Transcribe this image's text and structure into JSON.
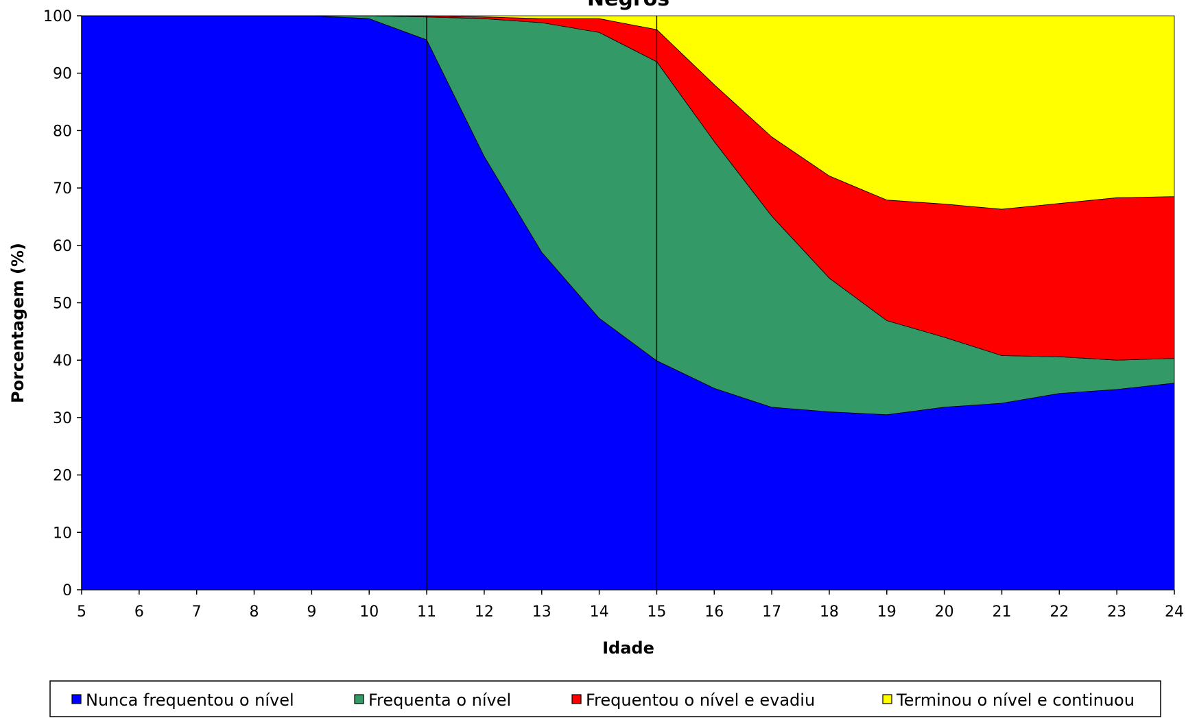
{
  "chart_data": {
    "type": "area",
    "stacked": true,
    "normalized_percent": true,
    "title": "Negros",
    "xlabel": "Idade",
    "ylabel": "Porcentagem (%)",
    "x": [
      5,
      6,
      7,
      8,
      9,
      10,
      11,
      12,
      13,
      14,
      15,
      16,
      17,
      18,
      19,
      20,
      21,
      22,
      23,
      24
    ],
    "xlim": [
      5,
      24
    ],
    "ylim": [
      0,
      100
    ],
    "yticks": [
      0,
      10,
      20,
      30,
      40,
      50,
      60,
      70,
      80,
      90,
      100
    ],
    "grid": false,
    "legend_position": "bottom",
    "vertical_lines_at_x": [
      11,
      15
    ],
    "series": [
      {
        "name": "Nunca frequentou o nível",
        "color": "#0000FF",
        "values": [
          100,
          100,
          100,
          100,
          100,
          99.5,
          95.8,
          75.5,
          58.8,
          47.3,
          39.9,
          35.1,
          31.8,
          31.0,
          30.5,
          31.8,
          32.5,
          34.2,
          34.9,
          36.0
        ]
      },
      {
        "name": "Frequenta o nível",
        "color": "#339966",
        "values": [
          0,
          0,
          0,
          0,
          0,
          0.5,
          4.0,
          24.0,
          40.0,
          49.8,
          52.1,
          43.0,
          33.3,
          23.3,
          16.4,
          12.2,
          8.3,
          6.4,
          5.1,
          4.3
        ]
      },
      {
        "name": "Frequentou o nível e evadiu",
        "color": "#FF0000",
        "values": [
          0,
          0,
          0,
          0,
          0,
          0,
          0.2,
          0.3,
          0.7,
          2.4,
          5.6,
          9.9,
          13.8,
          17.8,
          21.0,
          23.2,
          25.5,
          26.7,
          28.3,
          28.2
        ]
      },
      {
        "name": "Terminou o nível e continuou",
        "color": "#FFFF00",
        "values": [
          0,
          0,
          0,
          0,
          0,
          0,
          0,
          0.2,
          0.5,
          0.5,
          2.4,
          12.0,
          21.1,
          27.9,
          32.1,
          32.8,
          33.7,
          32.7,
          31.7,
          31.5
        ]
      }
    ]
  }
}
